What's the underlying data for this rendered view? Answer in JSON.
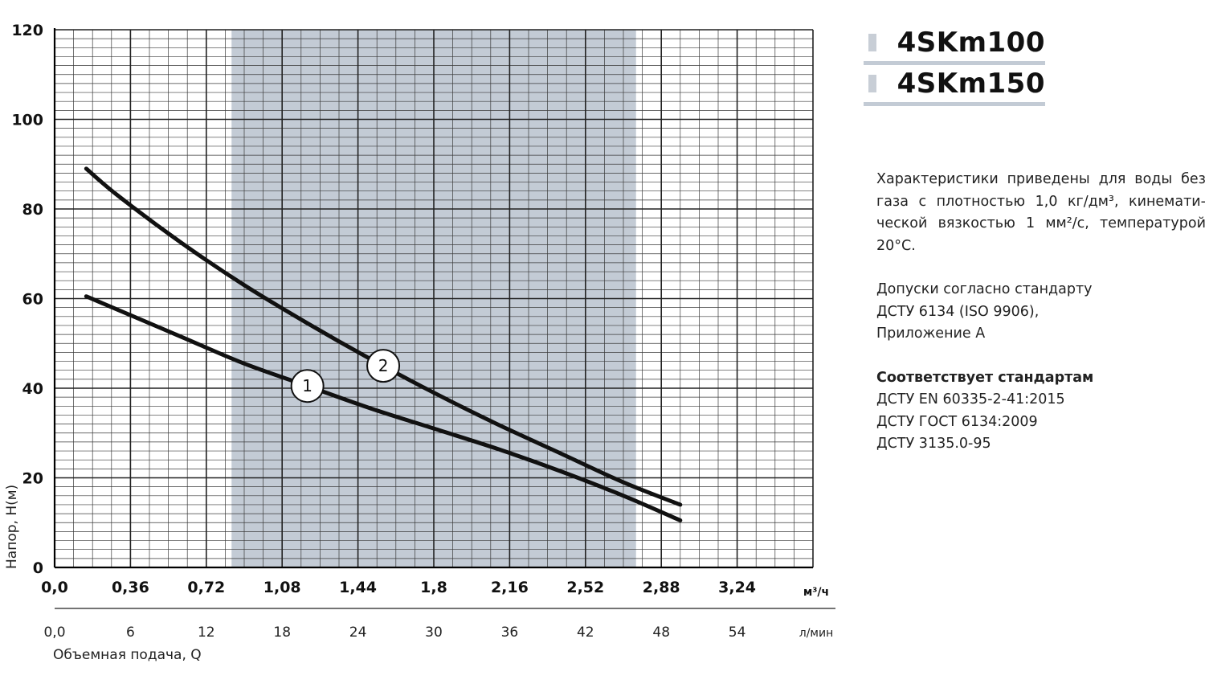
{
  "chart_data": {
    "type": "line",
    "title": "",
    "xlabel": "Объемная подача, Q",
    "ylabel": "Напор, H(м)",
    "x_unit_primary": "м³/ч",
    "x_unit_secondary": "л/мин",
    "xlim": [
      0,
      3.6
    ],
    "ylim": [
      0,
      120
    ],
    "x_ticks_primary": [
      "0,0",
      "0,36",
      "0,72",
      "1,08",
      "1,44",
      "1,8",
      "2,16",
      "2,52",
      "2,88",
      "3,24"
    ],
    "x_ticks_primary_values": [
      0,
      0.36,
      0.72,
      1.08,
      1.44,
      1.8,
      2.16,
      2.52,
      2.88,
      3.24
    ],
    "x_ticks_secondary": [
      "0,0",
      "6",
      "12",
      "18",
      "24",
      "30",
      "36",
      "42",
      "48",
      "54"
    ],
    "x_ticks_secondary_values": [
      0,
      0.36,
      0.72,
      1.08,
      1.44,
      1.8,
      2.16,
      2.52,
      2.88,
      3.24
    ],
    "y_ticks": [
      "0",
      "20",
      "40",
      "60",
      "80",
      "100",
      "120"
    ],
    "y_ticks_values": [
      0,
      20,
      40,
      60,
      80,
      100,
      120
    ],
    "grid": true,
    "operating_range": {
      "x": [
        0.84,
        2.76
      ],
      "color": "#c3cbd5"
    },
    "series": [
      {
        "label": "1",
        "x": [
          0.15,
          0.3,
          0.6,
          0.9,
          1.2,
          1.5,
          1.8,
          2.1,
          2.4,
          2.7,
          2.97
        ],
        "y": [
          60.5,
          57.5,
          51.5,
          45.5,
          40.5,
          35.5,
          31,
          26.5,
          21.5,
          16,
          10.5
        ]
      },
      {
        "label": "2",
        "x": [
          0.15,
          0.3,
          0.6,
          0.9,
          1.2,
          1.5,
          1.8,
          2.1,
          2.4,
          2.7,
          2.97
        ],
        "y": [
          89,
          83,
          72.5,
          63,
          54.5,
          46.5,
          39,
          32,
          25.5,
          19,
          14
        ]
      }
    ],
    "line_color": "#111111",
    "grid_color": "#3a3a3a"
  },
  "legend": [
    {
      "label": "4SKm100",
      "color": "#c8ced6"
    },
    {
      "label": "4SKm150",
      "color": "#c8ced6"
    }
  ],
  "notes": {
    "p1_line1": [
      "Характеристики",
      "приведены",
      "для",
      "воды",
      "без"
    ],
    "p1_line2": [
      "газа",
      "с",
      "плотностью",
      "1,0",
      "кг/дм³,",
      "кинемати-"
    ],
    "p1_line3": [
      "ческой",
      "вязкостью",
      "1",
      "мм²/с,",
      "температурой"
    ],
    "p1_line4": "20°С.",
    "p2_line1": "Допуски согласно стандарту",
    "p2_line2": "ДСТУ 6134 (ISO 9906),",
    "p2_line3": "Приложение А",
    "p3_title": "Соответствует стандартам",
    "p3_line1": "ДСТУ EN 60335-2-41:2015",
    "p3_line2": "ДСТУ ГОСТ 6134:2009",
    "p3_line3": "ДСТУ 3135.0-95"
  }
}
